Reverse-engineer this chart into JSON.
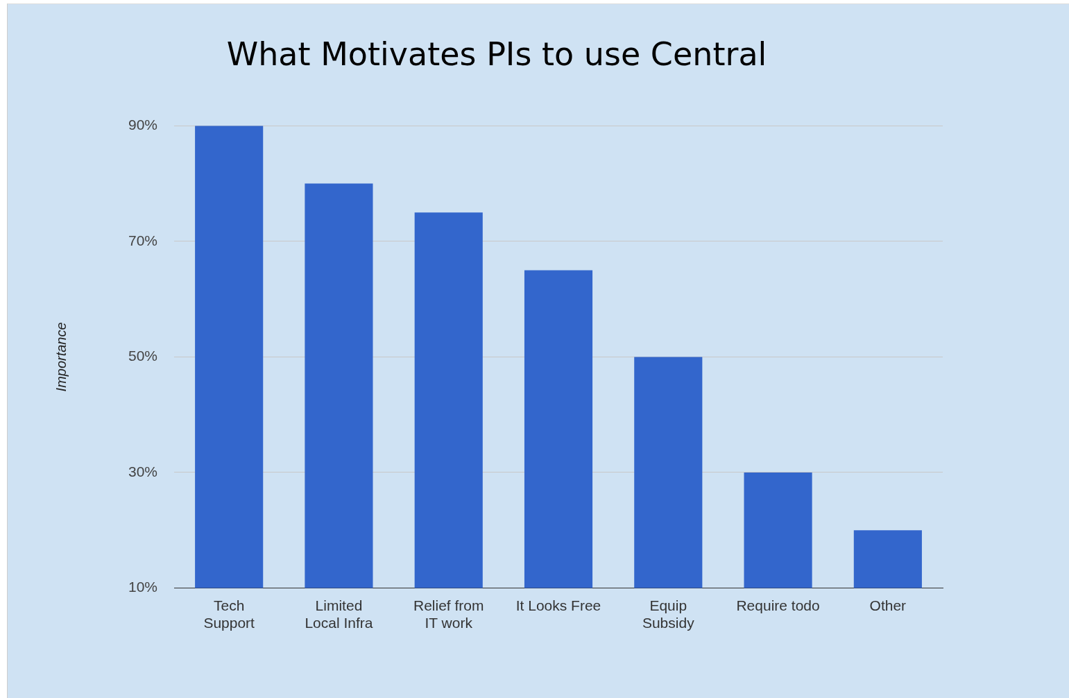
{
  "chart_data": {
    "type": "bar",
    "title": "What Motivates PIs to use Central",
    "ylabel": "Importance",
    "categories": [
      "Tech\nSupport",
      "Limited\nLocal Infra",
      "Relief from\nIT work",
      "It Looks Free",
      "Equip\nSubsidy",
      "Require todo",
      "Other"
    ],
    "values": [
      90,
      80,
      75,
      65,
      50,
      30,
      20
    ],
    "color": "#3366cc",
    "ylim": [
      10,
      90
    ],
    "yticks": [
      {
        "value": 10,
        "label": "10%"
      },
      {
        "value": 30,
        "label": "30%"
      },
      {
        "value": 50,
        "label": "50%"
      },
      {
        "value": 70,
        "label": "70%"
      },
      {
        "value": 90,
        "label": "90%"
      }
    ],
    "grid": "y",
    "legend": false
  }
}
